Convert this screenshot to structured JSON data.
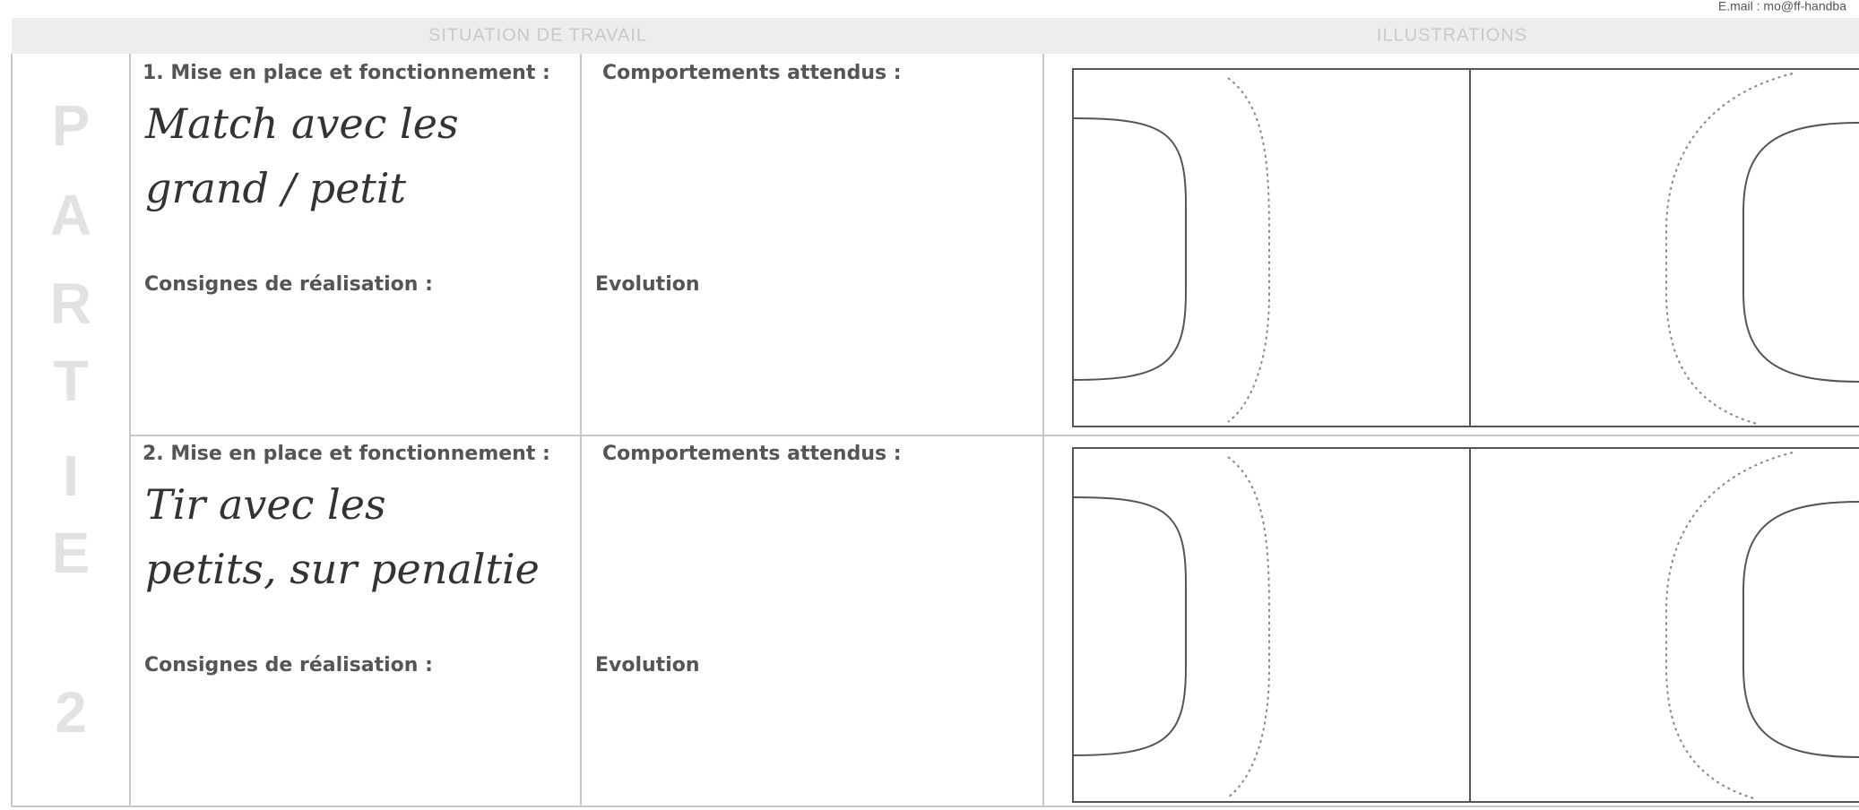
{
  "header": {
    "email": "E.mail : mo@ff-handba",
    "columns": [
      "SITUATION DE TRAVAIL",
      "ILLUSTRATIONS"
    ]
  },
  "side_label": [
    "P",
    "A",
    "R",
    "T",
    "I",
    "E",
    "2"
  ],
  "situations": [
    {
      "title": "1. Mise en place et fonctionnement :",
      "handwritten": [
        "Match avec les",
        "grand / petit"
      ],
      "expected": "Comportements attendus :",
      "instructions": "Consignes de réalisation :",
      "evolution": "Evolution"
    },
    {
      "title": "2. Mise en place et fonctionnement :",
      "handwritten": [
        "Tir avec les",
        "petits, sur penaltie"
      ],
      "expected": "Comportements attendus :",
      "instructions": "Consignes de réalisation :",
      "evolution": "Evolution"
    }
  ]
}
